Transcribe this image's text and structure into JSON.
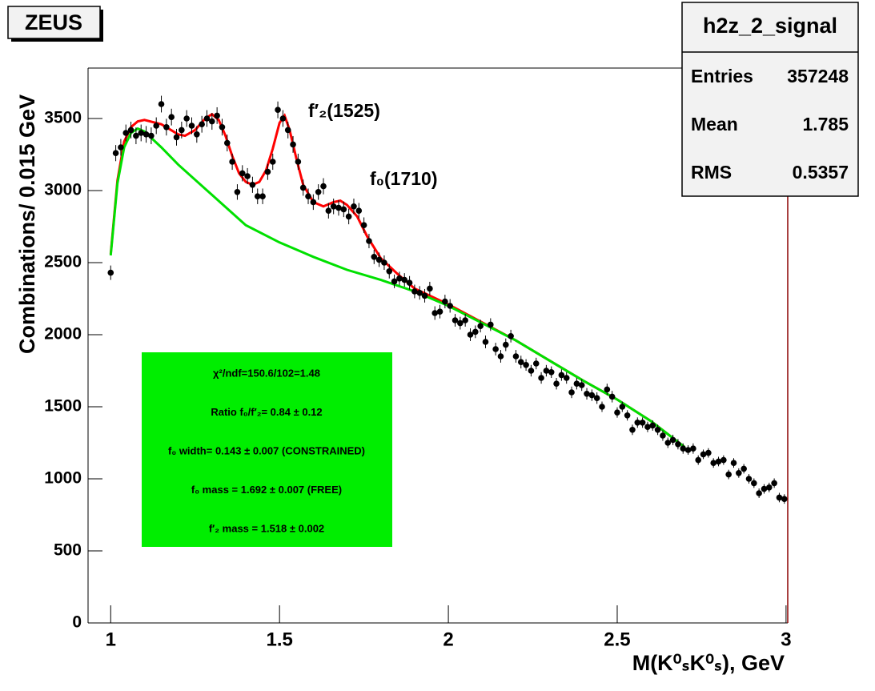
{
  "chart_data": {
    "type": "scatter",
    "experiment_label": "ZEUS",
    "ylabel": "Combinations/ 0.015 GeV",
    "xlabel": "M(K⁰ₛK⁰ₛ), GeV",
    "xlim": [
      0.933,
      3.005
    ],
    "ylim": [
      0,
      3850
    ],
    "xticks": [
      1,
      1.5,
      2,
      2.5,
      3
    ],
    "yticks": [
      0,
      500,
      1000,
      1500,
      2000,
      2500,
      3000,
      3500
    ],
    "stats": {
      "title": "h2z_2_signal",
      "rows": [
        [
          "Entries",
          357248
        ],
        [
          "Mean",
          1.785
        ],
        [
          "RMS",
          0.5357
        ]
      ]
    },
    "annotations": [
      "f′₂(1525)",
      "f₀(1710)"
    ],
    "fit_box": {
      "color": "#00ee00",
      "lines": [
        "χ²/ndf=150.6/102=1.48",
        "Ratio f₀/f′₂= 0.84 ± 0.12",
        "f₀ width= 0.143 ± 0.007 (CONSTRAINED)",
        "f₀ mass = 1.692 ± 0.007 (FREE)",
        "f′₂ mass = 1.518 ± 0.002"
      ]
    },
    "points": {
      "color": "#000000",
      "x": [
        1.0,
        1.015,
        1.03,
        1.045,
        1.06,
        1.075,
        1.09,
        1.105,
        1.12,
        1.135,
        1.15,
        1.165,
        1.18,
        1.195,
        1.21,
        1.225,
        1.24,
        1.255,
        1.27,
        1.285,
        1.3,
        1.315,
        1.33,
        1.345,
        1.36,
        1.375,
        1.39,
        1.405,
        1.42,
        1.435,
        1.45,
        1.465,
        1.48,
        1.495,
        1.51,
        1.525,
        1.54,
        1.555,
        1.57,
        1.585,
        1.6,
        1.615,
        1.63,
        1.645,
        1.66,
        1.675,
        1.69,
        1.705,
        1.72,
        1.735,
        1.75,
        1.765,
        1.78,
        1.795,
        1.81,
        1.825,
        1.84,
        1.855,
        1.87,
        1.885,
        1.9,
        1.915,
        1.93,
        1.945,
        1.96,
        1.975,
        1.99,
        2.005,
        2.02,
        2.035,
        2.05,
        2.065,
        2.08,
        2.095,
        2.11,
        2.125,
        2.14,
        2.155,
        2.17,
        2.185,
        2.2,
        2.215,
        2.23,
        2.245,
        2.26,
        2.275,
        2.29,
        2.305,
        2.32,
        2.335,
        2.35,
        2.365,
        2.38,
        2.395,
        2.41,
        2.425,
        2.44,
        2.455,
        2.47,
        2.485,
        2.5,
        2.515,
        2.53,
        2.545,
        2.56,
        2.575,
        2.59,
        2.605,
        2.62,
        2.635,
        2.65,
        2.665,
        2.68,
        2.695,
        2.71,
        2.725,
        2.74,
        2.755,
        2.77,
        2.785,
        2.8,
        2.815,
        2.83,
        2.845,
        2.86,
        2.875,
        2.89,
        2.905,
        2.92,
        2.935,
        2.95,
        2.965,
        2.98,
        2.995
      ],
      "values": [
        2430,
        3260,
        3300,
        3400,
        3420,
        3380,
        3400,
        3390,
        3380,
        3450,
        3600,
        3440,
        3510,
        3370,
        3420,
        3500,
        3450,
        3390,
        3460,
        3500,
        3480,
        3520,
        3440,
        3330,
        3200,
        2990,
        3120,
        3100,
        3040,
        2960,
        2960,
        3130,
        3200,
        3560,
        3500,
        3420,
        3320,
        3200,
        3020,
        2960,
        2920,
        2990,
        3030,
        2860,
        2890,
        2880,
        2870,
        2820,
        2890,
        2860,
        2760,
        2650,
        2540,
        2520,
        2500,
        2440,
        2370,
        2390,
        2380,
        2360,
        2300,
        2290,
        2270,
        2320,
        2150,
        2160,
        2230,
        2200,
        2100,
        2080,
        2100,
        2000,
        2020,
        2060,
        1950,
        2070,
        1900,
        1850,
        1930,
        1990,
        1850,
        1810,
        1790,
        1750,
        1800,
        1700,
        1750,
        1740,
        1660,
        1720,
        1700,
        1600,
        1660,
        1650,
        1590,
        1580,
        1560,
        1500,
        1620,
        1570,
        1460,
        1500,
        1440,
        1340,
        1390,
        1390,
        1360,
        1370,
        1340,
        1300,
        1250,
        1270,
        1240,
        1210,
        1200,
        1210,
        1130,
        1170,
        1180,
        1110,
        1120,
        1130,
        1030,
        1110,
        1040,
        1070,
        1000,
        970,
        900,
        930,
        940,
        970,
        870,
        860
      ],
      "errors": [
        50,
        56,
        58,
        58,
        58,
        58,
        58,
        58,
        58,
        58,
        58,
        58,
        58,
        58,
        58,
        58,
        58,
        58,
        58,
        58,
        58,
        58,
        58,
        58,
        56,
        54,
        56,
        56,
        56,
        54,
        54,
        56,
        56,
        58,
        58,
        58,
        58,
        56,
        56,
        54,
        54,
        54,
        56,
        54,
        54,
        54,
        54,
        54,
        54,
        54,
        54,
        50,
        50,
        50,
        50,
        50,
        47,
        47,
        47,
        47,
        47,
        47,
        47,
        47,
        47,
        47,
        47,
        47,
        44,
        44,
        44,
        44,
        44,
        44,
        44,
        44,
        44,
        44,
        44,
        44,
        44,
        44,
        40,
        40,
        40,
        40,
        40,
        40,
        40,
        40,
        40,
        40,
        40,
        40,
        40,
        40,
        40,
        36,
        40,
        40,
        36,
        36,
        36,
        36,
        36,
        36,
        36,
        36,
        36,
        36,
        36,
        36,
        36,
        36,
        33,
        36,
        33,
        33,
        33,
        33,
        33,
        33,
        33,
        33,
        33,
        33,
        33,
        33,
        33,
        33,
        33,
        33,
        33,
        33
      ]
    },
    "series": [
      {
        "color": "#ff0000",
        "x": [
          1.0,
          1.02,
          1.04,
          1.06,
          1.08,
          1.1,
          1.15,
          1.2,
          1.22,
          1.25,
          1.28,
          1.3,
          1.32,
          1.34,
          1.36,
          1.38,
          1.4,
          1.42,
          1.44,
          1.46,
          1.48,
          1.5,
          1.515,
          1.53,
          1.55,
          1.57,
          1.6,
          1.63,
          1.66,
          1.68,
          1.7,
          1.73,
          1.76,
          1.8,
          1.85,
          1.9,
          2.0,
          2.1,
          2.2,
          2.3,
          2.4,
          2.5,
          2.6,
          2.7
        ],
        "values": [
          2560,
          3070,
          3340,
          3440,
          3480,
          3490,
          3460,
          3390,
          3380,
          3420,
          3500,
          3530,
          3490,
          3380,
          3240,
          3120,
          3060,
          3040,
          3060,
          3140,
          3290,
          3470,
          3520,
          3420,
          3220,
          3040,
          2920,
          2890,
          2920,
          2930,
          2900,
          2820,
          2680,
          2530,
          2420,
          2320,
          2210,
          2085,
          1960,
          1820,
          1680,
          1550,
          1400,
          1220
        ]
      },
      {
        "color": "#00e000",
        "x": [
          1.0,
          1.02,
          1.04,
          1.06,
          1.08,
          1.1,
          1.15,
          1.2,
          1.3,
          1.4,
          1.5,
          1.6,
          1.7,
          1.8,
          1.9,
          2.0,
          2.1,
          2.2,
          2.3,
          2.4,
          2.5,
          2.6,
          2.7
        ],
        "values": [
          2550,
          3050,
          3300,
          3400,
          3430,
          3410,
          3300,
          3180,
          2970,
          2760,
          2640,
          2540,
          2450,
          2380,
          2300,
          2200,
          2080,
          1960,
          1820,
          1680,
          1550,
          1400,
          1220
        ]
      }
    ]
  }
}
